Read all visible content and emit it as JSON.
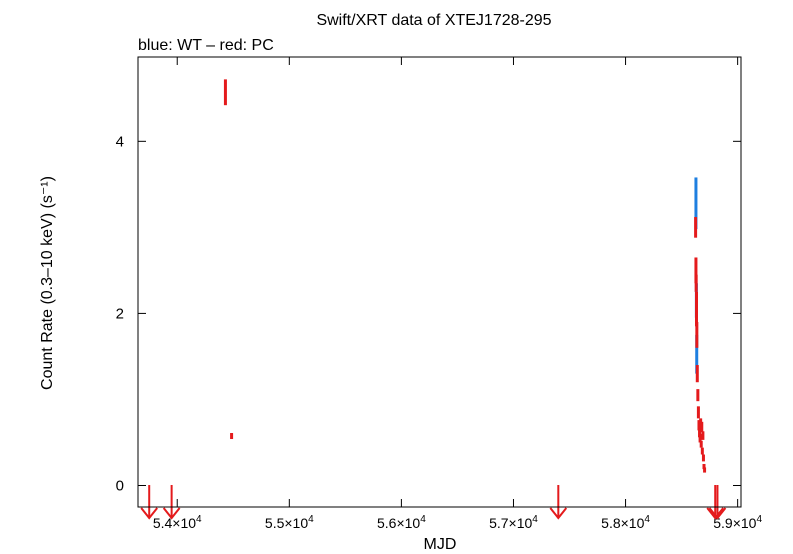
{
  "chart_data": {
    "type": "scatter",
    "title": "Swift/XRT data of XTEJ1728-295",
    "subtitle": "blue: WT – red: PC",
    "xlabel": "MJD",
    "ylabel": "Count Rate (0.3–10 keV) (s⁻¹)",
    "xlim": [
      53650,
      59030
    ],
    "ylim": [
      -0.25,
      4.98
    ],
    "x_ticks": [
      {
        "value": 54000,
        "mant": "5.4",
        "exp": "4"
      },
      {
        "value": 55000,
        "mant": "5.5",
        "exp": "4"
      },
      {
        "value": 56000,
        "mant": "5.6",
        "exp": "4"
      },
      {
        "value": 57000,
        "mant": "5.7",
        "exp": "4"
      },
      {
        "value": 58000,
        "mant": "5.8",
        "exp": "4"
      },
      {
        "value": 59000,
        "mant": "5.9",
        "exp": "4"
      }
    ],
    "y_ticks": [
      {
        "value": 0,
        "label": "0"
      },
      {
        "value": 2,
        "label": "2"
      },
      {
        "value": 4,
        "label": "4"
      }
    ],
    "colors": {
      "WT": "#1e7fe0",
      "PC": "#e41a1c"
    },
    "series": [
      {
        "key": "WT",
        "points": [
          {
            "x": 58628,
            "y": 3.28,
            "ylo": 2.98,
            "yhi": 3.58
          },
          {
            "x": 58632,
            "y": 2.15,
            "ylo": 1.95,
            "yhi": 2.35
          },
          {
            "x": 58635,
            "y": 1.52,
            "ylo": 1.3,
            "yhi": 1.75
          }
        ]
      },
      {
        "key": "PC",
        "points": [
          {
            "x": 54430,
            "y": 4.57,
            "ylo": 4.42,
            "yhi": 4.72
          },
          {
            "x": 54485,
            "y": 0.57,
            "ylo": 0.54,
            "yhi": 0.61
          },
          {
            "x": 58625,
            "y": 2.95,
            "ylo": 2.88,
            "yhi": 3.12
          },
          {
            "x": 58628,
            "y": 2.5,
            "ylo": 2.35,
            "yhi": 2.65
          },
          {
            "x": 58630,
            "y": 2.35,
            "ylo": 2.25,
            "yhi": 2.45
          },
          {
            "x": 58633,
            "y": 2.05,
            "ylo": 1.85,
            "yhi": 2.25
          },
          {
            "x": 58636,
            "y": 1.75,
            "ylo": 1.6,
            "yhi": 1.9
          },
          {
            "x": 58640,
            "y": 1.3,
            "ylo": 1.2,
            "yhi": 1.4
          },
          {
            "x": 58645,
            "y": 1.05,
            "ylo": 0.98,
            "yhi": 1.12
          },
          {
            "x": 58650,
            "y": 0.85,
            "ylo": 0.78,
            "yhi": 0.92
          },
          {
            "x": 58655,
            "y": 0.7,
            "ylo": 0.64,
            "yhi": 0.76
          },
          {
            "x": 58660,
            "y": 0.62,
            "ylo": 0.56,
            "yhi": 0.68
          },
          {
            "x": 58665,
            "y": 0.55,
            "ylo": 0.5,
            "yhi": 0.6
          },
          {
            "x": 58670,
            "y": 0.72,
            "ylo": 0.66,
            "yhi": 0.78
          },
          {
            "x": 58675,
            "y": 0.48,
            "ylo": 0.44,
            "yhi": 0.52
          },
          {
            "x": 58680,
            "y": 0.68,
            "ylo": 0.62,
            "yhi": 0.74
          },
          {
            "x": 58685,
            "y": 0.4,
            "ylo": 0.36,
            "yhi": 0.44
          },
          {
            "x": 58690,
            "y": 0.58,
            "ylo": 0.53,
            "yhi": 0.63
          },
          {
            "x": 58695,
            "y": 0.32,
            "ylo": 0.28,
            "yhi": 0.36
          },
          {
            "x": 58700,
            "y": 0.22,
            "ylo": 0.19,
            "yhi": 0.25
          },
          {
            "x": 58705,
            "y": 0.18,
            "ylo": 0.15,
            "yhi": 0.21
          }
        ]
      }
    ],
    "upper_limits": [
      {
        "x": 53750,
        "y": 0.0
      },
      {
        "x": 53950,
        "y": 0.0
      },
      {
        "x": 57400,
        "y": 0.0
      },
      {
        "x": 58800,
        "y": 0.0
      },
      {
        "x": 58820,
        "y": 0.0
      }
    ]
  }
}
